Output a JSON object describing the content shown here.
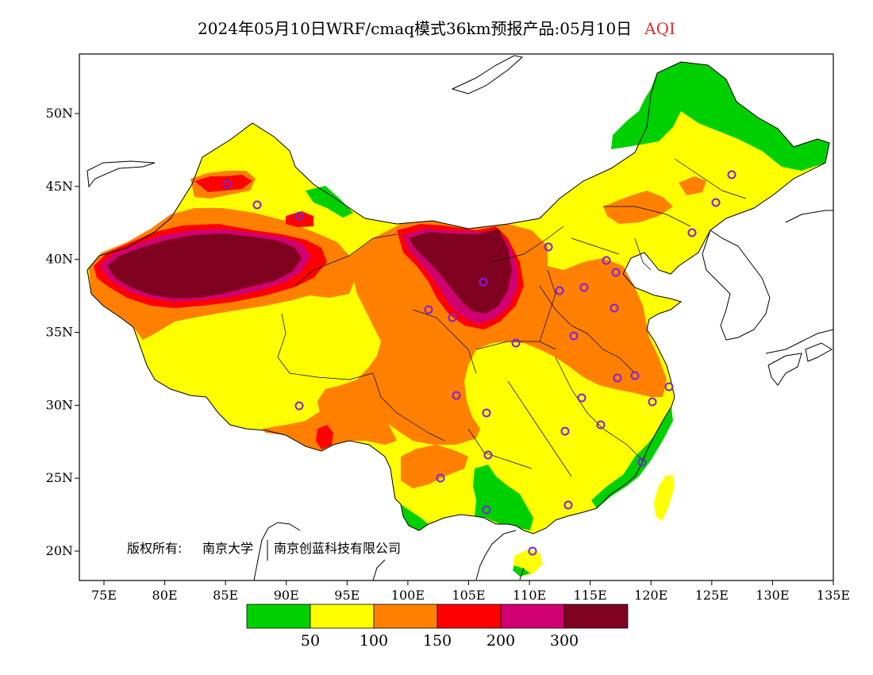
{
  "title": {
    "main": "2024年05月10日WRF/cmaq模式36km预报产品:05月10日",
    "variable": "AQI"
  },
  "axes": {
    "lon_ticks": [
      "75E",
      "80E",
      "85E",
      "90E",
      "95E",
      "100E",
      "105E",
      "110E",
      "115E",
      "120E",
      "125E",
      "130E",
      "135E"
    ],
    "lat_ticks": [
      "50N",
      "45N",
      "40N",
      "35N",
      "30N",
      "25N",
      "20N"
    ]
  },
  "copyright": {
    "label": "版权所有:",
    "owner1": "南京大学",
    "owner2": "南京创蓝科技有限公司"
  },
  "legend": {
    "colors": [
      "#00d000",
      "#ffff00",
      "#ff8000",
      "#ff0000",
      "#d00070",
      "#800020"
    ],
    "breaks": [
      "50",
      "100",
      "150",
      "200",
      "300"
    ]
  },
  "colors": {
    "good": "#00d000",
    "moderate": "#ffff00",
    "sensitive": "#ff8000",
    "unhealthy": "#ff0000",
    "very_unhealthy": "#d00070",
    "hazardous": "#800020",
    "station_marker": "#8020e0"
  },
  "station_markers": "circle",
  "map_extent": {
    "lon": [
      73,
      135
    ],
    "lat": [
      18,
      54
    ]
  }
}
